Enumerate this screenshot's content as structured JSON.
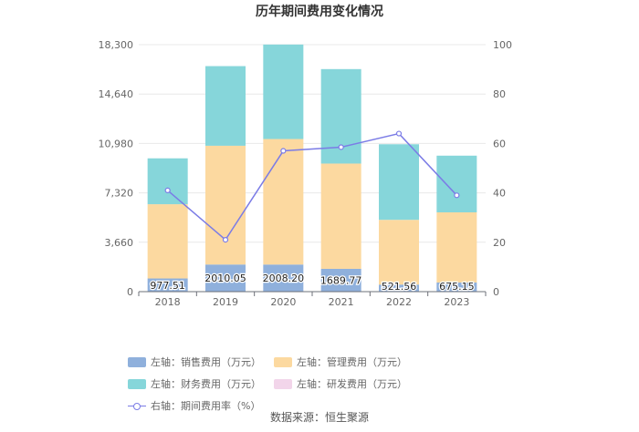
{
  "chart_data": {
    "type": "bar",
    "title": "历年期间费用变化情况",
    "categories": [
      "2018",
      "2019",
      "2020",
      "2021",
      "2022",
      "2023"
    ],
    "y_left_ticks": [
      "0",
      "3,660",
      "7,320",
      "10,980",
      "14,640",
      "18,300"
    ],
    "y_right_ticks": [
      "0",
      "20",
      "40",
      "60",
      "80",
      "100"
    ],
    "ylim_left": [
      0,
      18300
    ],
    "ylim_right": [
      0,
      100
    ],
    "series": [
      {
        "name": "左轴：销售费用（万元）",
        "kind": "bar",
        "axis": "left",
        "color": "#8fb0dc",
        "values": [
          977.51,
          2010.05,
          2008.2,
          1689.77,
          521.56,
          675.15
        ],
        "labels": [
          "977.51",
          "2010.05",
          "2008.20",
          "1689.77",
          "521.56",
          "675.15"
        ]
      },
      {
        "name": "左轴：管理费用（万元）",
        "kind": "bar",
        "axis": "left",
        "color": "#fcd9a0",
        "values": [
          5500,
          8800,
          9300,
          7800,
          4800,
          5200
        ]
      },
      {
        "name": "左轴：财务费用（万元）",
        "kind": "bar",
        "axis": "left",
        "color": "#86d6da",
        "values": [
          3400,
          5900,
          7000,
          7000,
          5600,
          4200
        ]
      },
      {
        "name": "左轴：研发费用（万元）",
        "kind": "bar",
        "axis": "left",
        "color": "#f2d5ea",
        "values": [
          0,
          0,
          0,
          0,
          0,
          0
        ]
      },
      {
        "name": "右轴：期间费用率（%）",
        "kind": "line",
        "axis": "right",
        "color": "#7b7ce6",
        "values": [
          41,
          21,
          57,
          58.5,
          64,
          39
        ]
      }
    ],
    "grid": true,
    "legend_position": "bottom"
  },
  "source_text": "数据来源：恒生聚源"
}
